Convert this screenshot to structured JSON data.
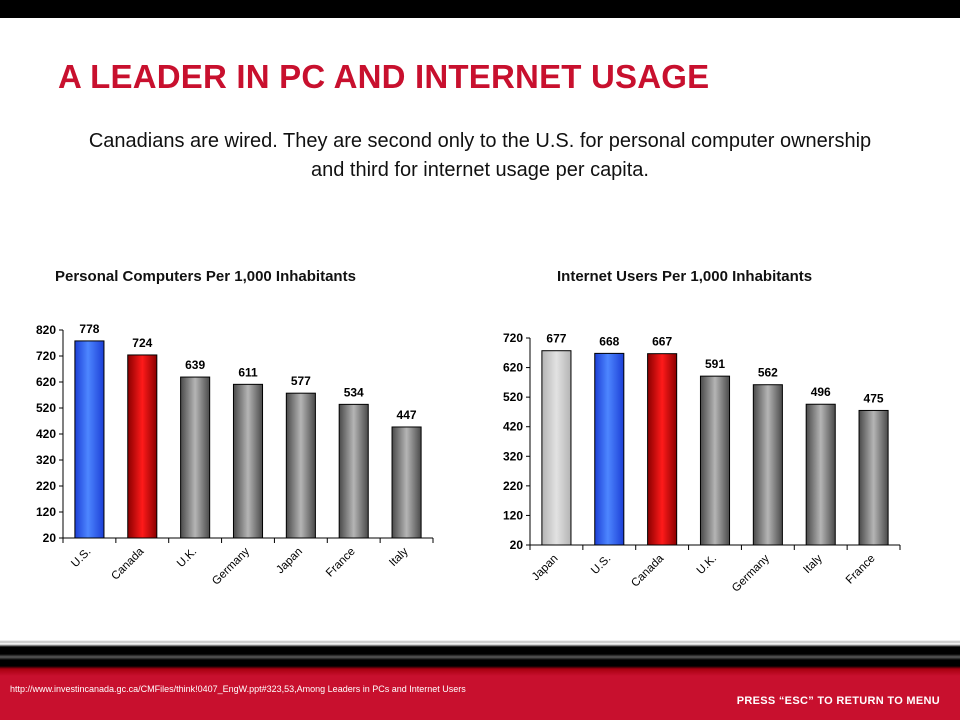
{
  "title": "A LEADER IN PC AND INTERNET USAGE",
  "subtitle": "Canadians are wired.  They are second only to the U.S. for personal computer ownership and third for internet usage per capita.",
  "footer": {
    "source": "http://www.investincanada.gc.ca/CMFiles/think!0407_EngW.ppt#323,53,Among Leaders in PCs and Internet Users",
    "esc_note": "PRESS “ESC” TO RETURN TO MENU"
  },
  "colors": {
    "accent": "#c8102e",
    "us_bar": "#2f6bff",
    "canada_bar": "#e00000",
    "other_bar": "#888888",
    "japan_bar_chart2": "#c8c8c8"
  },
  "chart_data": [
    {
      "type": "bar",
      "title": "Personal Computers Per 1,000 Inhabitants",
      "categories": [
        "U.S.",
        "Canada",
        "U.K.",
        "Germany",
        "Japan",
        "France",
        "Italy"
      ],
      "values": [
        778,
        724,
        639,
        611,
        577,
        534,
        447
      ],
      "bar_colors": [
        "blue",
        "red",
        "gray",
        "gray",
        "gray",
        "gray",
        "gray"
      ],
      "ylim": [
        20,
        820
      ],
      "yticks": [
        20,
        120,
        220,
        320,
        420,
        520,
        620,
        720,
        820
      ],
      "data_labels": true
    },
    {
      "type": "bar",
      "title": "Internet Users Per 1,000 Inhabitants",
      "categories": [
        "Japan",
        "U.S.",
        "Canada",
        "U.K.",
        "Germany",
        "Italy",
        "France"
      ],
      "values": [
        677,
        668,
        667,
        591,
        562,
        496,
        475
      ],
      "bar_colors": [
        "lightgray",
        "blue",
        "red",
        "gray",
        "gray",
        "gray",
        "gray"
      ],
      "ylim": [
        20,
        720
      ],
      "yticks": [
        20,
        120,
        220,
        320,
        420,
        520,
        620,
        720
      ],
      "data_labels": true
    }
  ]
}
